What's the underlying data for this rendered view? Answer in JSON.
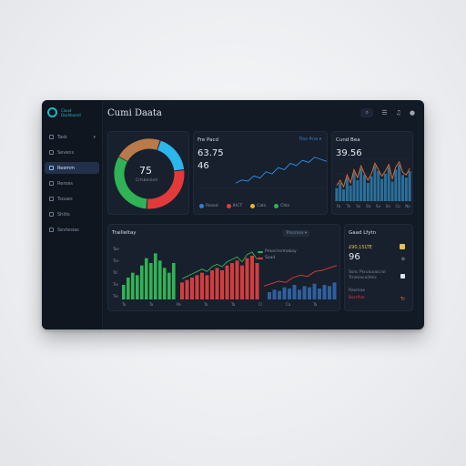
{
  "app": {
    "title": "Cumi Daata",
    "logo_line1": "Cloud",
    "logo_line2": "Dashboard"
  },
  "sidebar": {
    "items": [
      {
        "label": "Task",
        "active": false
      },
      {
        "label": "Sevens",
        "active": false
      },
      {
        "label": "Reemm",
        "active": true
      },
      {
        "label": "Reroes",
        "active": false
      },
      {
        "label": "Tsoues",
        "active": false
      },
      {
        "label": "Shitis",
        "active": false
      },
      {
        "label": "Sevtesias",
        "active": false
      }
    ]
  },
  "topbar": {
    "icons": [
      "search-icon",
      "sliders-icon",
      "bell-icon",
      "avatar-icon"
    ]
  },
  "donut": {
    "value": "75",
    "label": "Crlsbenied",
    "segments": [
      {
        "color": "#b87a4a",
        "value": 22
      },
      {
        "color": "#2bb7ec",
        "value": 18
      },
      {
        "color": "#e23a3a",
        "value": 28
      },
      {
        "color": "#2fb355",
        "value": 32
      }
    ]
  },
  "trend_card": {
    "title": "Fre Pacd",
    "link": "Tlnn Pcre ▾",
    "value1": "63.75",
    "value2": "46",
    "legend": [
      {
        "label": "Rosed",
        "color": "#2e7fd6"
      },
      {
        "label": "IHCT",
        "color": "#e23a3a"
      },
      {
        "label": "Cale",
        "color": "#f0b429"
      },
      {
        "label": "Chle",
        "color": "#2fb355"
      }
    ],
    "chart_data": {
      "type": "line",
      "series": [
        {
          "values": [
            5,
            8,
            7,
            12,
            10,
            16,
            14,
            20,
            18,
            24,
            22,
            27,
            25,
            30,
            28,
            26
          ]
        }
      ],
      "ylim": [
        0,
        35
      ]
    }
  },
  "bars_card": {
    "title": "Cund Bea",
    "value": "39.56",
    "x_labels": [
      "Fa",
      "Ta",
      "Ss",
      "Sa",
      "Sa",
      "Sa",
      "Co",
      "No"
    ],
    "chart_data": {
      "type": "bar",
      "values": [
        10,
        14,
        9,
        18,
        12,
        22,
        16,
        25,
        20,
        14,
        19,
        27,
        23,
        17,
        21,
        26,
        15,
        24,
        28,
        20,
        18,
        23
      ],
      "line": [
        12,
        16,
        11,
        20,
        14,
        24,
        18,
        27,
        21,
        16,
        21,
        29,
        24,
        19,
        23,
        28,
        17,
        26,
        30,
        22,
        20,
        25
      ],
      "ylim": [
        0,
        32
      ]
    }
  },
  "volume_card": {
    "title": "Trailleltay",
    "link": "Trlscmos ▾",
    "y_labels": [
      "Tae",
      "Tce",
      "Tcl",
      "Tie",
      "Tie"
    ],
    "x_labels": [
      "Ta",
      "Ta",
      "Pa",
      "Ta",
      "Ta",
      "Cl",
      "Ca",
      "Ta"
    ],
    "legend": [
      {
        "label": "Proocirsrmakay",
        "color": "#2fb355"
      },
      {
        "label": "Soad",
        "color": "#e23a3a"
      }
    ],
    "chart_data": {
      "type": "bar",
      "green": [
        12,
        18,
        22,
        20,
        28,
        34,
        30,
        38,
        32,
        26,
        22,
        30
      ],
      "red": [
        14,
        16,
        18,
        20,
        22,
        20,
        24,
        26,
        24,
        28,
        30,
        32,
        28,
        34,
        36,
        30
      ],
      "blue": [
        6,
        8,
        7,
        10,
        9,
        12,
        8,
        11,
        10,
        13,
        9,
        12,
        11,
        14
      ],
      "trend": [
        5,
        7,
        9,
        8,
        12,
        14,
        13,
        17,
        18,
        20,
        22
      ],
      "ylim": [
        0,
        45
      ]
    }
  },
  "side_card": {
    "title": "Gaad Lfytn",
    "line1": "£90,15LTE",
    "value": "96",
    "line2": "Ssnc Psruluvaicrol",
    "line3": "Trnmiacoilmic",
    "line4": "Rasmae",
    "line5": "Bssrfise"
  }
}
